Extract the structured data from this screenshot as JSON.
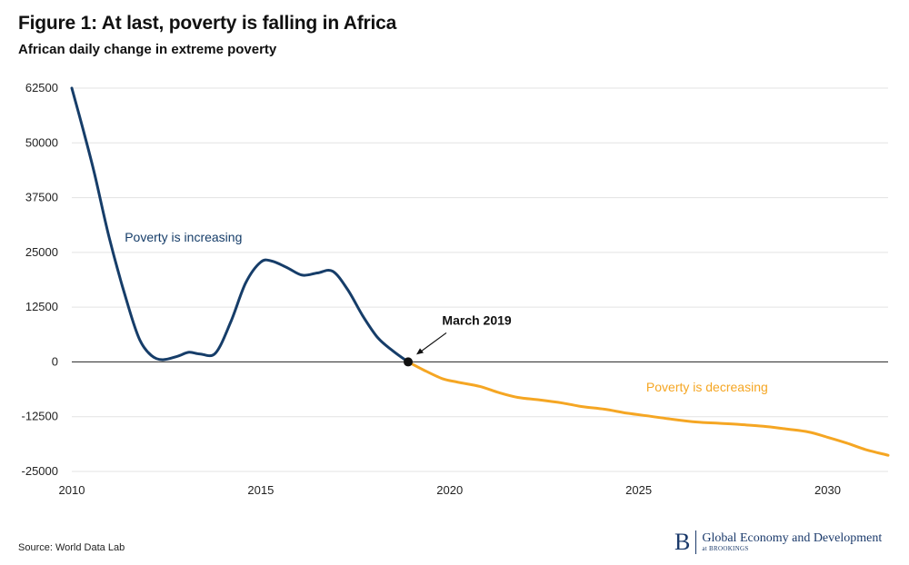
{
  "header": {
    "title": "Figure 1: At last, poverty is falling in Africa",
    "subtitle": "African daily change in extreme poverty"
  },
  "footer": {
    "source": "Source: World Data Lab",
    "brand_letter": "B",
    "brand_name": "Global Economy and Development",
    "brand_sub": "at BROOKINGS"
  },
  "colors": {
    "increasing": "#163d69",
    "decreasing": "#f5a623",
    "grid": "#e3e3e3",
    "zero_line": "#222222",
    "axis_text": "#222222"
  },
  "chart_data": {
    "type": "line",
    "title": "Figure 1: At last, poverty is falling in Africa",
    "subtitle": "African daily change in extreme poverty",
    "xlabel": "",
    "ylabel": "",
    "xlim": [
      2010,
      2031.6
    ],
    "ylim": [
      -25000,
      62500
    ],
    "x_ticks": [
      2010,
      2015,
      2020,
      2025,
      2030
    ],
    "y_ticks": [
      62500,
      50000,
      37500,
      25000,
      12500,
      0,
      -12500,
      -25000
    ],
    "grid": "horizontal",
    "series": [
      {
        "name": "Poverty is increasing",
        "color": "#163d69",
        "x": [
          2010,
          2010.3,
          2010.6,
          2011.0,
          2011.5,
          2011.8,
          2012.1,
          2012.4,
          2012.8,
          2013.1,
          2013.4,
          2013.8,
          2014.2,
          2014.6,
          2015.0,
          2015.3,
          2015.7,
          2016.1,
          2016.5,
          2016.9,
          2017.3,
          2017.7,
          2018.1,
          2018.5,
          2018.9
        ],
        "y": [
          62500,
          53000,
          43000,
          28000,
          12500,
          5000,
          1500,
          500,
          1300,
          2200,
          1800,
          2000,
          9000,
          18000,
          22800,
          23000,
          21500,
          19800,
          20300,
          20700,
          16500,
          10500,
          5500,
          2500,
          0
        ]
      },
      {
        "name": "Poverty is decreasing",
        "color": "#f5a623",
        "x": [
          2018.9,
          2019.3,
          2019.8,
          2020.2,
          2020.8,
          2021.3,
          2021.8,
          2022.4,
          2023.0,
          2023.5,
          2024.1,
          2024.7,
          2025.3,
          2025.9,
          2026.5,
          2027.1,
          2027.7,
          2028.3,
          2028.9,
          2029.5,
          2030.0,
          2030.5,
          2031.0,
          2031.6
        ],
        "y": [
          0,
          -1800,
          -3800,
          -4600,
          -5600,
          -7000,
          -8100,
          -8700,
          -9400,
          -10200,
          -10800,
          -11700,
          -12400,
          -13100,
          -13700,
          -14000,
          -14300,
          -14700,
          -15300,
          -16000,
          -17200,
          -18500,
          -20000,
          -21300
        ]
      }
    ],
    "annotations": [
      {
        "text": "Poverty is increasing",
        "x": 2011.4,
        "y": 27500,
        "color": "#163d69"
      },
      {
        "text": "Poverty is decreasing",
        "x": 2025.2,
        "y": -6800,
        "color": "#f5a623"
      },
      {
        "text": "March 2019",
        "x": 2019.8,
        "y": 8500,
        "color": "#111111"
      }
    ],
    "marker": {
      "x": 2018.9,
      "y": 0
    }
  }
}
